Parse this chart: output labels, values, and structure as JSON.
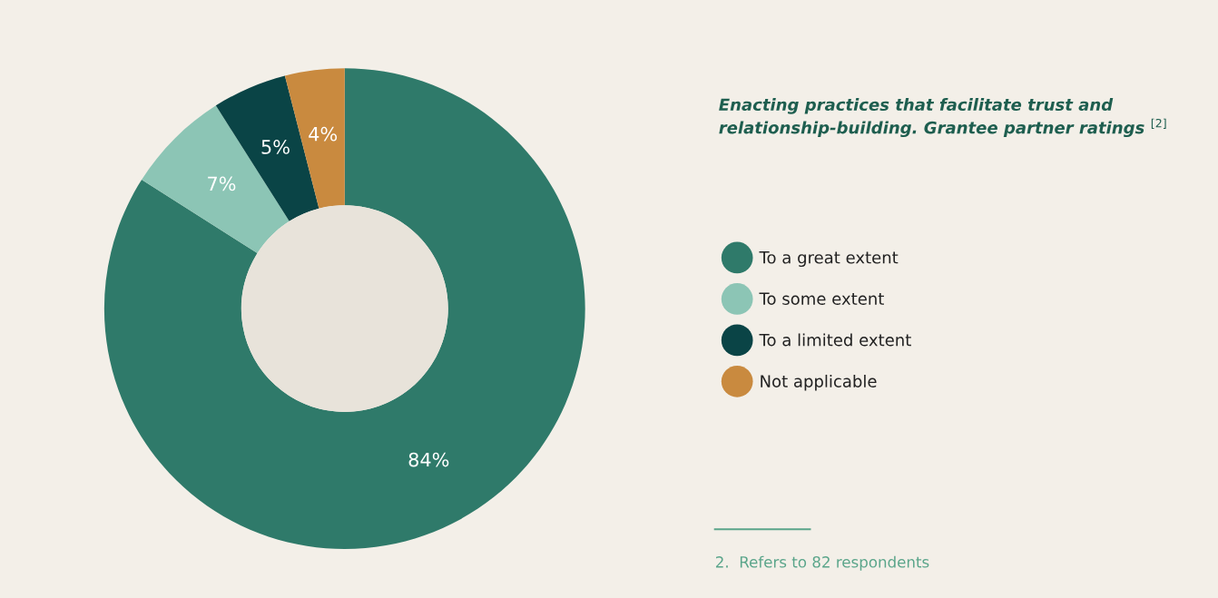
{
  "chart_data": {
    "type": "donut",
    "title": "Enacting practices that facilitate trust and  relationship-building. Grantee partner ratings $^{[2]}$",
    "categories": [
      "To a great extent",
      "To some extent",
      "To a limited extent",
      "Not applicable"
    ],
    "values": [
      84,
      7,
      5,
      4
    ],
    "colors": [
      "#2f7a6a",
      "#8cc5b5",
      "#0a4446",
      "#c98a3f"
    ],
    "value_labels": [
      "84%",
      "7%",
      "5%",
      "4%"
    ],
    "legend": "right",
    "annotations": [
      "2.  Refers to 82 respondents"
    ]
  }
}
